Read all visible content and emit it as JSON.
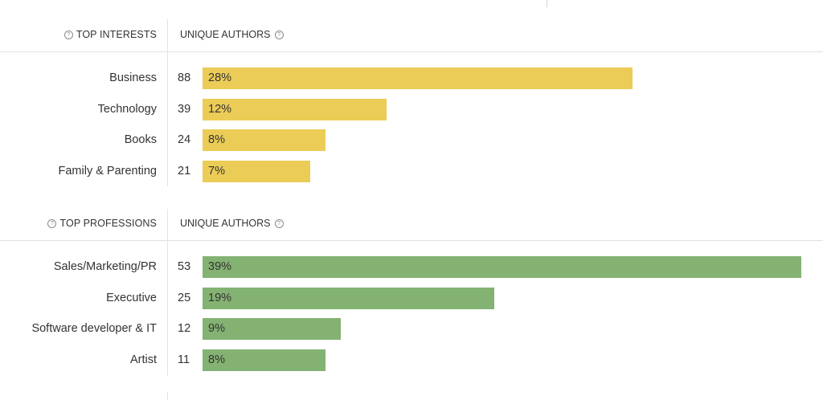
{
  "colors": {
    "interests": "#ebcc57",
    "professions": "#84b272"
  },
  "icons": {
    "help": "question-circle-icon"
  },
  "help_glyph": "?",
  "interests": {
    "title": "TOP INTERESTS",
    "column_title": "UNIQUE AUTHORS",
    "items": [
      {
        "label": "Business",
        "count": "88",
        "percent": "28%"
      },
      {
        "label": "Technology",
        "count": "39",
        "percent": "12%"
      },
      {
        "label": "Books",
        "count": "24",
        "percent": "8%"
      },
      {
        "label": "Family & Parenting",
        "count": "21",
        "percent": "7%"
      }
    ]
  },
  "professions": {
    "title": "TOP PROFESSIONS",
    "column_title": "UNIQUE AUTHORS",
    "items": [
      {
        "label": "Sales/Marketing/PR",
        "count": "53",
        "percent": "39%"
      },
      {
        "label": "Executive",
        "count": "25",
        "percent": "19%"
      },
      {
        "label": "Software developer & IT",
        "count": "12",
        "percent": "9%"
      },
      {
        "label": "Artist",
        "count": "11",
        "percent": "8%"
      }
    ]
  },
  "chart_data": [
    {
      "type": "bar",
      "orientation": "horizontal",
      "title": "TOP INTERESTS",
      "ylabel": "UNIQUE AUTHORS",
      "categories": [
        "Business",
        "Technology",
        "Books",
        "Family & Parenting"
      ],
      "values": [
        88,
        39,
        24,
        21
      ],
      "percent_labels": [
        28,
        12,
        8,
        7
      ],
      "color": "#ebcc57"
    },
    {
      "type": "bar",
      "orientation": "horizontal",
      "title": "TOP PROFESSIONS",
      "ylabel": "UNIQUE AUTHORS",
      "categories": [
        "Sales/Marketing/PR",
        "Executive",
        "Software developer & IT",
        "Artist"
      ],
      "values": [
        53,
        25,
        12,
        11
      ],
      "percent_labels": [
        39,
        19,
        9,
        8
      ],
      "color": "#84b272"
    }
  ]
}
